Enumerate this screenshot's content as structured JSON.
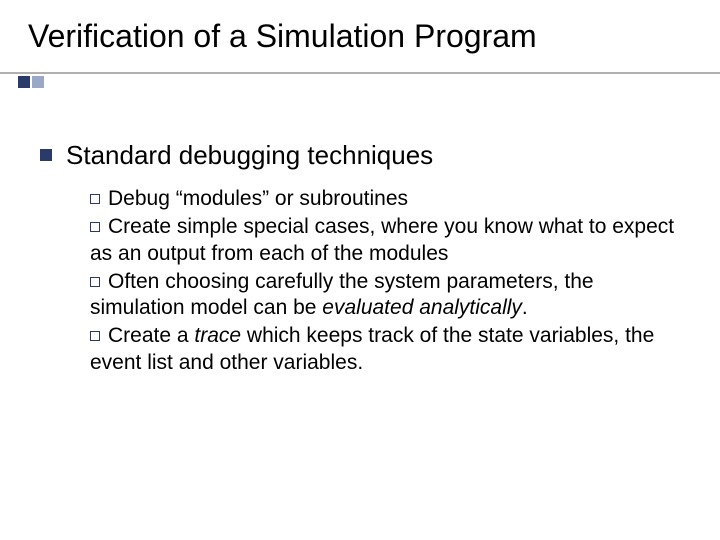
{
  "colors": {
    "background": "#ffffff",
    "text": "#000000",
    "accent_dark": "#2a3a6a",
    "accent_light": "#9aa8c8",
    "underline": "#B0B0B0"
  },
  "typography": {
    "title_fontsize": 32,
    "level1_fontsize": 26,
    "level2_fontsize": 21,
    "font_family": "Arial"
  },
  "title": "Verification of a Simulation Program",
  "level1": {
    "text": "Standard debugging techniques"
  },
  "level2": [
    {
      "prefix": "Debug ",
      "quoted": "“modules”",
      "rest": " or subroutines"
    },
    {
      "full": "Create simple special cases, where you know what to expect as an output from each of the modules"
    },
    {
      "pre": "Often choosing carefully the system parameters, the simulation model can be ",
      "em": "evaluated analytically",
      "post": "."
    },
    {
      "pre2": "Create a ",
      "em2": "trace",
      "post2": " which keeps track of the state variables, the event list and other variables."
    }
  ]
}
